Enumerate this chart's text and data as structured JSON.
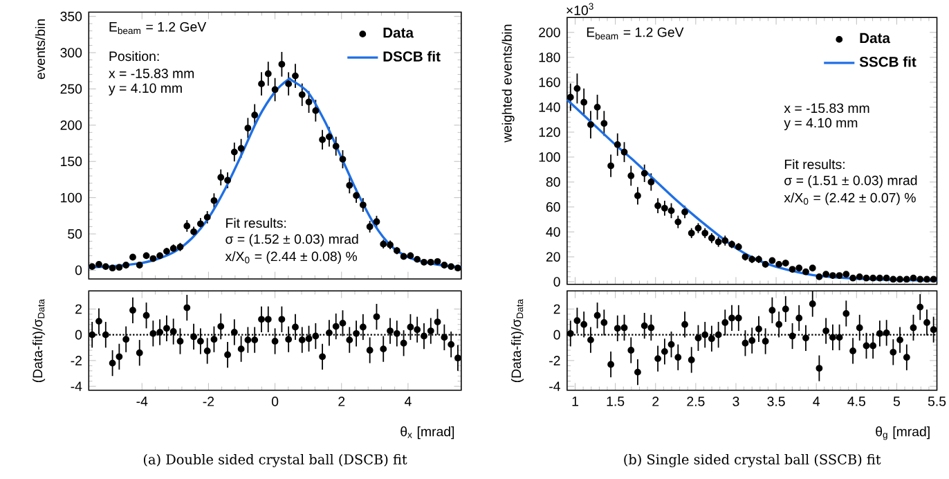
{
  "chart_data": [
    {
      "type": "scatter",
      "ylabel": "events/bin",
      "legend": "top right",
      "tick_labels": "y",
      "xlim": [
        -5.6,
        5.6
      ],
      "xticks": [
        -4,
        -2,
        0,
        2,
        4
      ],
      "ylim": [
        -12,
        356
      ],
      "yticks": [
        0,
        50,
        100,
        150,
        200,
        250,
        300,
        350
      ],
      "annotations": [
        "E$_{beam}$ = 1.2 GeV",
        "Position:",
        "x = -15.83 mm",
        "y = 4.10 mm",
        "Fit results:",
        "σ = (1.52 ± 0.03) mrad",
        "x/X$_{0}$ = (2.44 ± 0.08) %"
      ],
      "series": [
        {
          "name": "Data",
          "type": "scatter",
          "marker": "circle",
          "color": "#000000",
          "x": [
            -5.498,
            -5.295,
            -5.091,
            -4.887,
            -4.684,
            -4.48,
            -4.276,
            -4.073,
            -3.869,
            -3.665,
            -3.462,
            -3.258,
            -3.055,
            -2.851,
            -2.647,
            -2.444,
            -2.24,
            -2.036,
            -1.833,
            -1.629,
            -1.425,
            -1.222,
            -1.018,
            -0.815,
            -0.611,
            -0.407,
            -0.204,
            0.0,
            0.204,
            0.407,
            0.611,
            0.815,
            1.018,
            1.222,
            1.425,
            1.629,
            1.833,
            2.036,
            2.24,
            2.444,
            2.647,
            2.851,
            3.055,
            3.258,
            3.462,
            3.665,
            3.869,
            4.073,
            4.276,
            4.48,
            4.684,
            4.887,
            5.091,
            5.295,
            5.498
          ],
          "values": [
            5,
            8,
            5,
            3,
            4,
            7,
            18,
            7,
            20,
            16,
            20,
            26,
            30,
            32,
            61,
            53,
            64,
            73,
            96,
            128,
            124,
            163,
            168,
            196,
            214,
            257,
            271,
            249,
            284,
            257,
            268,
            242,
            232,
            220,
            180,
            184,
            171,
            153,
            117,
            103,
            90,
            60,
            67,
            36,
            35,
            27,
            19,
            20,
            15,
            11,
            11,
            12,
            7,
            5,
            3
          ],
          "errors": [
            2,
            3,
            2,
            2,
            2,
            3,
            4,
            3,
            4.5,
            4,
            4.5,
            5,
            5.5,
            5.7,
            8,
            7,
            8,
            8.5,
            10,
            11,
            11,
            13,
            13,
            14,
            15,
            16,
            16.5,
            16,
            17,
            16,
            16.5,
            15.5,
            15,
            15,
            13.5,
            13.5,
            13,
            12.5,
            11,
            10,
            9.5,
            8,
            8,
            6,
            6,
            5,
            4.5,
            4.5,
            4,
            3.5,
            3.5,
            3.5,
            3,
            2,
            2
          ]
        },
        {
          "name": "DSCB fit",
          "type": "line",
          "color": "#1f6fe5",
          "x": [
            -5.6,
            -5,
            -4.5,
            -4,
            -3.5,
            -3,
            -2.5,
            -2,
            -1.5,
            -1,
            -0.5,
            0,
            0.4,
            0.5,
            1,
            1.5,
            2,
            2.5,
            3,
            3.5,
            4,
            4.5,
            5,
            5.6
          ],
          "values": [
            4,
            5,
            7,
            10,
            16,
            26,
            44,
            72,
            112,
            160,
            210,
            246,
            263,
            262,
            245,
            205,
            155,
            105,
            62,
            33,
            18,
            11,
            7,
            4
          ]
        }
      ]
    },
    {
      "type": "scatter",
      "xlabel": "θ$_{x}$ [mrad]",
      "ylabel": "(Data-fit)/σ$_{Data}$",
      "marker": "circle",
      "xlim": [
        -5.6,
        5.6
      ],
      "xticks": [
        -4,
        -2,
        0,
        2,
        4
      ],
      "ylim": [
        -4.3,
        3.4
      ],
      "yticks": [
        -4,
        -2,
        0,
        2
      ],
      "ref_lines": [
        {
          "axis": "y",
          "value": 0,
          "line_style": "dotted"
        }
      ],
      "annotations": [
        "(a) Double sided crystal ball (DSCB) fit"
      ],
      "series": [
        {
          "color": "#000000",
          "x": [
            -5.498,
            -5.295,
            -5.091,
            -4.887,
            -4.684,
            -4.48,
            -4.276,
            -4.073,
            -3.869,
            -3.665,
            -3.462,
            -3.258,
            -3.055,
            -2.851,
            -2.647,
            -2.444,
            -2.24,
            -2.036,
            -1.833,
            -1.629,
            -1.425,
            -1.222,
            -1.018,
            -0.815,
            -0.611,
            -0.407,
            -0.204,
            0.0,
            0.204,
            0.407,
            0.611,
            0.815,
            1.018,
            1.222,
            1.425,
            1.629,
            1.833,
            2.036,
            2.24,
            2.444,
            2.647,
            2.851,
            3.055,
            3.258,
            3.462,
            3.665,
            3.869,
            4.073,
            4.276,
            4.48,
            4.684,
            4.887,
            5.091,
            5.295,
            5.498
          ],
          "values": [
            0.0,
            1.05,
            0.0,
            -2.2,
            -1.7,
            -0.35,
            1.9,
            -1.4,
            1.5,
            0.1,
            0.2,
            0.5,
            0.25,
            -0.5,
            2.1,
            -0.15,
            -0.5,
            -1.25,
            -0.35,
            0.65,
            -1.55,
            0.2,
            -1.1,
            -0.4,
            -0.4,
            1.2,
            1.2,
            -0.5,
            1.2,
            -0.35,
            0.6,
            -0.4,
            -0.3,
            -0.1,
            -1.7,
            0.15,
            0.65,
            0.9,
            -0.4,
            0.1,
            0.6,
            -1.2,
            1.4,
            -1.1,
            0.3,
            0.1,
            -0.65,
            0.6,
            0.4,
            -0.1,
            0.3,
            1.0,
            -0.2,
            -0.75,
            -1.8
          ],
          "errors": [
            1,
            1,
            1,
            1,
            1,
            1,
            1,
            1,
            1,
            1,
            1,
            1,
            1,
            1,
            1,
            1,
            1,
            1,
            1,
            1,
            1,
            1,
            1,
            1,
            1,
            1,
            1,
            1,
            1,
            1,
            1,
            1,
            1,
            1,
            1,
            1,
            1,
            1,
            1,
            1,
            1,
            1,
            1,
            1,
            1,
            1,
            1,
            1,
            1,
            1,
            1,
            1,
            1,
            1,
            1
          ]
        }
      ]
    },
    {
      "type": "scatter",
      "ylabel": "weighted events/bin",
      "legend": "top right",
      "tick_labels": "y",
      "xlim": [
        0.9,
        5.5
      ],
      "xticks": [
        1,
        1.5,
        2,
        2.5,
        3,
        3.5,
        4,
        4.5,
        5,
        5.5
      ],
      "ylim": [
        -2,
        212
      ],
      "yticks": [
        0,
        20,
        40,
        60,
        80,
        100,
        120,
        140,
        160,
        180,
        200
      ],
      "annotations": [
        "×10$^{3}$",
        "E$_{beam}$ = 1.2 GeV",
        "x = -15.83 mm",
        "y = 4.10 mm",
        "Fit results:",
        "σ = (1.51 ± 0.03) mrad",
        "x/X$_{0}$ = (2.42 ± 0.07) %"
      ],
      "series": [
        {
          "name": "Data",
          "type": "scatter",
          "marker": "circle",
          "color": "#000000",
          "x": [
            0.942,
            1.025,
            1.109,
            1.193,
            1.276,
            1.36,
            1.444,
            1.527,
            1.611,
            1.695,
            1.778,
            1.862,
            1.945,
            2.029,
            2.113,
            2.196,
            2.28,
            2.364,
            2.447,
            2.531,
            2.615,
            2.698,
            2.782,
            2.865,
            2.949,
            3.033,
            3.116,
            3.2,
            3.284,
            3.367,
            3.451,
            3.535,
            3.618,
            3.702,
            3.785,
            3.869,
            3.953,
            4.036,
            4.12,
            4.204,
            4.287,
            4.371,
            4.455,
            4.538,
            4.622,
            4.705,
            4.789,
            4.873,
            4.956,
            5.04,
            5.124,
            5.207,
            5.291,
            5.375,
            5.458
          ],
          "values": [
            148,
            155,
            144,
            126,
            140,
            127,
            93,
            110,
            104,
            85,
            69,
            87,
            80,
            61,
            59,
            57,
            48,
            56,
            39,
            43,
            39,
            35,
            32,
            33,
            30,
            28,
            20,
            18,
            18,
            14,
            17,
            14,
            15,
            10,
            11,
            8,
            11,
            4,
            6,
            5,
            5,
            6,
            3,
            4,
            3,
            3,
            3,
            3,
            2,
            2,
            2,
            3,
            2,
            2,
            2
          ],
          "errors": [
            11,
            12,
            11,
            11,
            10,
            10,
            9,
            9,
            8,
            8,
            7,
            7,
            7,
            6,
            6,
            6,
            5,
            5,
            4,
            4,
            4,
            4,
            4,
            4,
            3,
            3,
            3,
            3,
            3,
            2.5,
            2.5,
            2.5,
            2.5,
            2,
            2,
            2,
            2,
            1.5,
            1.5,
            1.5,
            1.5,
            1.5,
            1.5,
            1.5,
            1.5,
            1.5,
            1.5,
            1.5,
            1.5,
            1.5,
            1.5,
            1.5,
            1.5,
            1.5,
            1.5
          ]
        },
        {
          "name": "SSCB fit",
          "type": "line",
          "color": "#1f6fe5",
          "x": [
            0.9,
            1.2,
            1.5,
            1.75,
            2,
            2.25,
            2.5,
            2.75,
            3,
            3.25,
            3.5,
            3.75,
            4,
            4.5,
            5,
            5.5
          ],
          "values": [
            146,
            128,
            110,
            96,
            81,
            66,
            52,
            39,
            27,
            18,
            12,
            8,
            5,
            2.5,
            1.5,
            1
          ]
        }
      ]
    },
    {
      "type": "scatter",
      "xlabel": "θ$_{g}$ [mrad]",
      "ylabel": "(Data-fit)/σ$_{Data}$",
      "marker": "circle",
      "xlim": [
        0.9,
        5.5
      ],
      "xticks": [
        1,
        1.5,
        2,
        2.5,
        3,
        3.5,
        4,
        4.5,
        5,
        5.5
      ],
      "ylim": [
        -4.3,
        3.4
      ],
      "yticks": [
        -4,
        -2,
        0,
        2
      ],
      "ref_lines": [
        {
          "axis": "y",
          "value": 0,
          "line_style": "dotted"
        }
      ],
      "annotations": [
        "(b) Single sided crystal ball (SSCB) fit"
      ],
      "series": [
        {
          "color": "#000000",
          "x": [
            0.942,
            1.025,
            1.109,
            1.193,
            1.276,
            1.36,
            1.444,
            1.527,
            1.611,
            1.695,
            1.778,
            1.862,
            1.945,
            2.029,
            2.113,
            2.196,
            2.28,
            2.364,
            2.447,
            2.531,
            2.615,
            2.698,
            2.782,
            2.865,
            2.949,
            3.033,
            3.116,
            3.2,
            3.284,
            3.367,
            3.451,
            3.535,
            3.618,
            3.702,
            3.785,
            3.869,
            3.953,
            4.036,
            4.12,
            4.204,
            4.287,
            4.371,
            4.455,
            4.538,
            4.622,
            4.705,
            4.789,
            4.873,
            4.956,
            5.04,
            5.124,
            5.207,
            5.291,
            5.375,
            5.458
          ],
          "values": [
            0.1,
            1.1,
            0.8,
            -0.4,
            1.5,
            0.95,
            -2.3,
            0.5,
            0.55,
            -1.2,
            -2.9,
            0.7,
            0.55,
            -1.85,
            -1.3,
            -0.75,
            -1.75,
            0.8,
            -1.95,
            -0.25,
            0.0,
            -0.3,
            0.0,
            0.95,
            1.3,
            1.3,
            -0.65,
            -0.45,
            0.45,
            -0.5,
            1.9,
            0.8,
            2.0,
            -0.1,
            1.3,
            -0.25,
            2.4,
            -2.6,
            0.3,
            -0.2,
            -0.2,
            1.65,
            -1.25,
            0.55,
            -0.85,
            -0.85,
            0.1,
            0.15,
            -1.35,
            -0.4,
            -1.75,
            0.55,
            2.15,
            0.95,
            0.4
          ],
          "errors": [
            1,
            1,
            1,
            1,
            1,
            1,
            1,
            1,
            1,
            1,
            1,
            1,
            1,
            1,
            1,
            1,
            1,
            1,
            1,
            1,
            1,
            1,
            1,
            1,
            1,
            1,
            1,
            1,
            1,
            1,
            1,
            1,
            1,
            1,
            1,
            1,
            1,
            1,
            1,
            1,
            1,
            1,
            1,
            1,
            1,
            1,
            1,
            1,
            1,
            1,
            1,
            1,
            1,
            1,
            1
          ]
        }
      ]
    }
  ]
}
